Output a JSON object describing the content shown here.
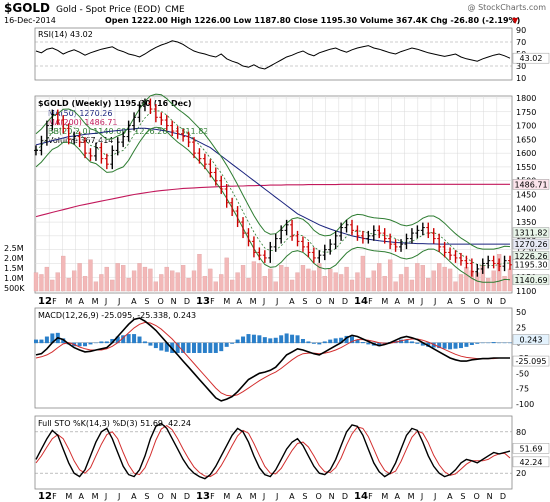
{
  "header": {
    "symbol": "$GOLD",
    "description": "Gold - Spot Price (EOD)",
    "exchange": "CME",
    "watermark": "@ StockCharts.com",
    "date": "16-Dec-2014",
    "ohlc": "Open 1222.00 High 1226.00 Low 1187.80 Close 1195.30 Volume 367.4K Chg -26.80 (-2.19%)",
    "chg_marker": "▼"
  },
  "colors": {
    "up": "#000000",
    "down": "#cc0000",
    "ma50": "#1a237e",
    "ma200": "#c2185b",
    "bb": "#2e7d32",
    "volume": "#f2b8b8",
    "macd_hist": "#2a7fc9",
    "signal": "#d32f2f",
    "grid": "#d9d9d9"
  },
  "chart_data": [
    {
      "type": "line",
      "panel": "rsi",
      "label": "RSI(14) 43.02",
      "ylim": [
        10,
        90
      ],
      "yticks": [
        "90",
        "70",
        "50",
        "30",
        "10"
      ],
      "value_tag": "43.02",
      "series": [
        {
          "name": "RSI(14)",
          "values": [
            55,
            52,
            58,
            60,
            56,
            50,
            54,
            57,
            53,
            48,
            52,
            55,
            58,
            60,
            62,
            57,
            54,
            50,
            48,
            45,
            50,
            56,
            61,
            65,
            68,
            72,
            70,
            66,
            60,
            55,
            52,
            50,
            47,
            45,
            50,
            42,
            38,
            35,
            30,
            28,
            32,
            27,
            25,
            30,
            35,
            40,
            45,
            48,
            52,
            55,
            50,
            47,
            52,
            55,
            58,
            60,
            56,
            53,
            57,
            60,
            62,
            64,
            60,
            58,
            55,
            52,
            50,
            54,
            57,
            60,
            58,
            55,
            52,
            50,
            48,
            46,
            48,
            50,
            45,
            42,
            40,
            38,
            42,
            45,
            48,
            50,
            47,
            43
          ]
        }
      ]
    },
    {
      "type": "line",
      "panel": "price",
      "label": "$GOLD (Weekly) 1195.30 (16 Dec)",
      "ylim": [
        1100,
        1800
      ],
      "yticks": [
        "1800",
        "1750",
        "1700",
        "1650",
        "1600",
        "1550",
        "1500",
        "1450",
        "1400",
        "1350",
        "1300",
        "1250",
        "1200",
        "1150",
        "1100"
      ],
      "xlabels": [
        "12",
        "F",
        "M",
        "A",
        "M",
        "J",
        "J",
        "A",
        "S",
        "O",
        "N",
        "D",
        "13",
        "F",
        "M",
        "A",
        "M",
        "J",
        "J",
        "A",
        "S",
        "O",
        "N",
        "D",
        "14",
        "F",
        "M",
        "A",
        "M",
        "J",
        "J",
        "A",
        "S",
        "O",
        "N",
        "D"
      ],
      "legend": [
        "MA(50) 1270.26",
        "MA(200) 1486.71",
        "BB(20,2.0) 1140.69 - 1226.26 - 1311.82",
        "Volume 367,414"
      ],
      "value_tags": [
        "1486.71",
        "1311.82",
        "1270.26",
        "1226.26",
        "1195.30",
        "1140.69"
      ],
      "volume_ticks": [
        "2.5M",
        "2.0M",
        "1.5M",
        "1.0M",
        "500K"
      ],
      "series": [
        {
          "name": "$GOLD",
          "values": [
            1610,
            1645,
            1700,
            1740,
            1720,
            1690,
            1650,
            1660,
            1640,
            1600,
            1590,
            1620,
            1580,
            1560,
            1610,
            1640,
            1660,
            1700,
            1730,
            1770,
            1780,
            1760,
            1730,
            1720,
            1700,
            1680,
            1670,
            1660,
            1640,
            1600,
            1580,
            1560,
            1530,
            1500,
            1470,
            1420,
            1390,
            1350,
            1310,
            1280,
            1240,
            1230,
            1220,
            1260,
            1290,
            1320,
            1340,
            1300,
            1280,
            1260,
            1240,
            1220,
            1230,
            1250,
            1270,
            1300,
            1330,
            1340,
            1320,
            1300,
            1290,
            1300,
            1320,
            1310,
            1290,
            1270,
            1260,
            1270,
            1290,
            1310,
            1320,
            1330,
            1310,
            1290,
            1260,
            1240,
            1230,
            1220,
            1210,
            1200,
            1170,
            1180,
            1200,
            1210,
            1200,
            1190,
            1210,
            1195
          ]
        },
        {
          "name": "MA(50)",
          "values": [
            1630,
            1635,
            1640,
            1645,
            1650,
            1655,
            1660,
            1662,
            1665,
            1668,
            1670,
            1672,
            1675,
            1678,
            1680,
            1682,
            1684,
            1686,
            1688,
            1690,
            1690,
            1688,
            1686,
            1683,
            1680,
            1675,
            1670,
            1665,
            1660,
            1650,
            1640,
            1630,
            1620,
            1605,
            1590,
            1575,
            1560,
            1545,
            1530,
            1515,
            1500,
            1485,
            1470,
            1455,
            1440,
            1425,
            1410,
            1395,
            1380,
            1370,
            1360,
            1350,
            1340,
            1332,
            1325,
            1318,
            1312,
            1306,
            1300,
            1296,
            1292,
            1288,
            1285,
            1282,
            1280,
            1278,
            1276,
            1275,
            1274,
            1273,
            1272,
            1272,
            1271,
            1271,
            1270,
            1270,
            1270,
            1270,
            1270,
            1270,
            1270,
            1270,
            1270,
            1270,
            1270,
            1270,
            1270,
            1270
          ]
        },
        {
          "name": "MA(200)",
          "values": [
            1370,
            1375,
            1380,
            1385,
            1390,
            1395,
            1400,
            1405,
            1410,
            1414,
            1418,
            1422,
            1426,
            1430,
            1434,
            1438,
            1442,
            1446,
            1450,
            1453,
            1456,
            1459,
            1462,
            1464,
            1466,
            1468,
            1470,
            1472,
            1473,
            1474,
            1475,
            1476,
            1477,
            1478,
            1479,
            1480,
            1480,
            1481,
            1481,
            1482,
            1482,
            1483,
            1483,
            1484,
            1484,
            1484,
            1485,
            1485,
            1485,
            1485,
            1486,
            1486,
            1486,
            1486,
            1486,
            1486,
            1487,
            1487,
            1487,
            1487,
            1487,
            1487,
            1487,
            1487,
            1487,
            1487,
            1487,
            1487,
            1487,
            1487,
            1487,
            1487,
            1487,
            1487,
            1487,
            1487,
            1487,
            1487,
            1487,
            1487,
            1487,
            1487,
            1487,
            1487,
            1487,
            1487,
            1487,
            1487
          ]
        }
      ]
    },
    {
      "type": "line",
      "panel": "macd",
      "label": "MACD(12,26,9) -25.095, -25.338, 0.243",
      "ylim": [
        -100,
        50
      ],
      "yticks": [
        "50",
        "25",
        "0",
        "-25",
        "-50",
        "-75",
        "-100"
      ],
      "value_tags": [
        "0.243",
        "-25.095"
      ],
      "series": [
        {
          "name": "MACD",
          "values": [
            -20,
            -18,
            -10,
            0,
            8,
            5,
            -2,
            -8,
            -12,
            -15,
            -14,
            -12,
            -10,
            -8,
            0,
            10,
            20,
            30,
            38,
            40,
            35,
            28,
            20,
            10,
            0,
            -10,
            -20,
            -30,
            -40,
            -50,
            -60,
            -70,
            -80,
            -90,
            -95,
            -92,
            -88,
            -80,
            -70,
            -60,
            -55,
            -50,
            -48,
            -45,
            -40,
            -30,
            -20,
            -15,
            -10,
            -12,
            -15,
            -18,
            -20,
            -15,
            -10,
            -5,
            0,
            8,
            12,
            10,
            6,
            2,
            -2,
            -5,
            -3,
            0,
            4,
            8,
            10,
            8,
            5,
            0,
            -5,
            -10,
            -15,
            -20,
            -25,
            -28,
            -30,
            -30,
            -28,
            -27,
            -26,
            -26,
            -25,
            -25,
            -25,
            -25
          ]
        },
        {
          "name": "Signal",
          "values": [
            -25,
            -23,
            -20,
            -15,
            -8,
            -2,
            0,
            -3,
            -7,
            -10,
            -12,
            -12,
            -12,
            -10,
            -6,
            0,
            8,
            16,
            24,
            30,
            33,
            32,
            28,
            22,
            14,
            6,
            -4,
            -14,
            -24,
            -34,
            -44,
            -54,
            -64,
            -74,
            -82,
            -86,
            -87,
            -85,
            -80,
            -74,
            -68,
            -62,
            -57,
            -52,
            -48,
            -42,
            -35,
            -28,
            -22,
            -18,
            -17,
            -17,
            -18,
            -17,
            -15,
            -12,
            -8,
            -3,
            2,
            5,
            5,
            4,
            2,
            0,
            -1,
            -1,
            1,
            3,
            5,
            6,
            6,
            4,
            1,
            -3,
            -7,
            -11,
            -15,
            -19,
            -22,
            -24,
            -25,
            -26,
            -26,
            -26,
            -26,
            -25,
            -25,
            -25
          ]
        }
      ]
    },
    {
      "type": "line",
      "panel": "sto",
      "label": "Full STO %K(14,3) %D(3) 51.69, 42.24",
      "ylim": [
        0,
        100
      ],
      "yticks": [
        "80",
        "20"
      ],
      "value_tags": [
        "51.69",
        "42.24"
      ],
      "xlabels": [
        "12",
        "F",
        "M",
        "A",
        "M",
        "J",
        "J",
        "A",
        "S",
        "O",
        "N",
        "D",
        "13",
        "F",
        "M",
        "A",
        "M",
        "J",
        "J",
        "A",
        "S",
        "O",
        "N",
        "D",
        "14",
        "F",
        "M",
        "A",
        "M",
        "J",
        "J",
        "A",
        "S",
        "O",
        "N",
        "D"
      ],
      "series": [
        {
          "name": "%K",
          "values": [
            40,
            55,
            70,
            82,
            75,
            55,
            35,
            20,
            15,
            25,
            45,
            65,
            80,
            85,
            70,
            50,
            30,
            18,
            15,
            25,
            45,
            70,
            88,
            92,
            85,
            70,
            55,
            40,
            28,
            20,
            15,
            12,
            18,
            30,
            45,
            60,
            75,
            85,
            80,
            65,
            45,
            28,
            18,
            15,
            25,
            40,
            55,
            65,
            70,
            60,
            45,
            30,
            20,
            18,
            25,
            40,
            60,
            80,
            90,
            88,
            75,
            55,
            35,
            22,
            15,
            20,
            35,
            55,
            75,
            85,
            82,
            65,
            45,
            30,
            20,
            15,
            18,
            25,
            35,
            40,
            38,
            35,
            40,
            45,
            50,
            48,
            50,
            52
          ]
        },
        {
          "name": "%D",
          "values": [
            35,
            45,
            58,
            70,
            76,
            70,
            55,
            38,
            25,
            20,
            28,
            45,
            62,
            76,
            80,
            70,
            50,
            32,
            20,
            18,
            28,
            46,
            68,
            84,
            89,
            83,
            70,
            55,
            41,
            29,
            21,
            16,
            15,
            20,
            31,
            45,
            60,
            74,
            82,
            78,
            63,
            46,
            30,
            20,
            19,
            27,
            40,
            53,
            63,
            65,
            58,
            45,
            31,
            22,
            21,
            28,
            42,
            61,
            77,
            87,
            85,
            73,
            55,
            37,
            24,
            19,
            23,
            37,
            55,
            72,
            81,
            78,
            64,
            46,
            32,
            22,
            17,
            19,
            26,
            33,
            38,
            38,
            38,
            40,
            45,
            48,
            49,
            42
          ]
        }
      ]
    }
  ]
}
